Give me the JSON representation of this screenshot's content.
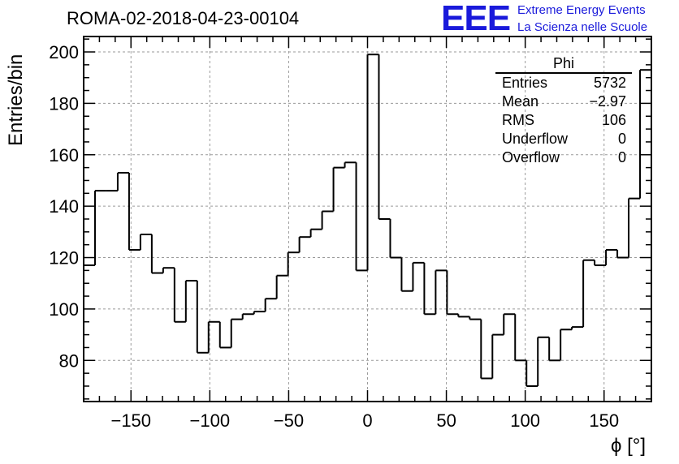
{
  "title": "ROMA-02-2018-04-23-00104",
  "logo": {
    "text": "EEE",
    "line1": "Extreme Energy Events",
    "line2": "La Scienza nelle Scuole",
    "color": "#1a1adb"
  },
  "stats_box": {
    "name": "Phi",
    "rows": [
      {
        "label": "Entries",
        "value": "5732"
      },
      {
        "label": "Mean",
        "value": "−2.97"
      },
      {
        "label": "RMS",
        "value": "106"
      },
      {
        "label": "Underflow",
        "value": "0"
      },
      {
        "label": "Overflow",
        "value": "0"
      }
    ]
  },
  "chart_data": {
    "type": "histogram",
    "title": "ROMA-02-2018-04-23-00104",
    "xlabel": "ϕ [°]",
    "ylabel": "Entries/bin",
    "xlim": [
      -180,
      180
    ],
    "ylim": [
      64,
      206
    ],
    "bin_width": 7.2,
    "bin_edges_start": -180,
    "xticks": [
      -150,
      -100,
      -50,
      0,
      50,
      100,
      150
    ],
    "xtick_labels": [
      "−150",
      "−100",
      "−50",
      "0",
      "50",
      "100",
      "150"
    ],
    "yticks": [
      80,
      100,
      120,
      140,
      160,
      180,
      200
    ],
    "ytick_labels": [
      "80",
      "100",
      "120",
      "140",
      "160",
      "180",
      "200"
    ],
    "grid": true,
    "values": [
      117,
      146,
      146,
      153,
      123,
      129,
      114,
      116,
      95,
      111,
      83,
      95,
      85,
      96,
      98,
      99,
      104,
      113,
      122,
      128,
      131,
      138,
      155,
      157,
      115,
      199,
      135,
      120,
      107,
      118,
      98,
      115,
      98,
      97,
      96,
      73,
      90,
      98,
      80,
      70,
      89,
      80,
      92,
      93,
      119,
      117,
      123,
      120,
      143,
      193
    ]
  }
}
